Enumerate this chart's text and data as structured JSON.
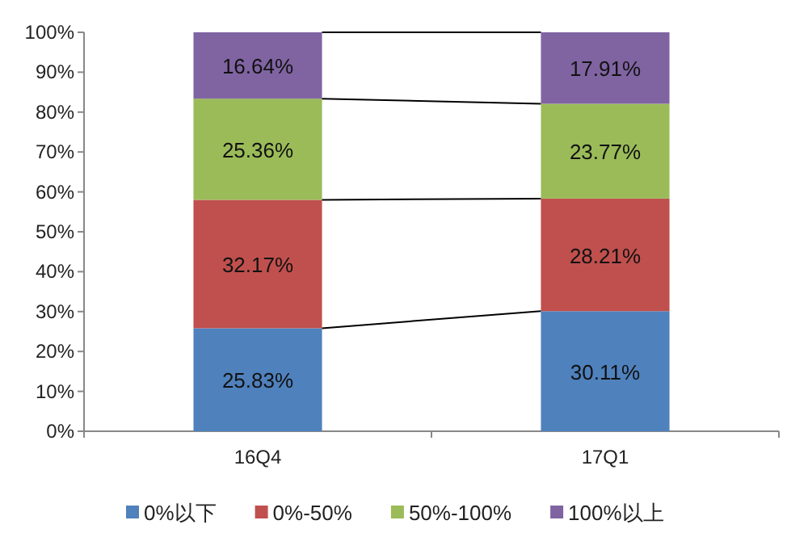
{
  "chart_data": {
    "type": "bar",
    "stacked": true,
    "categories": [
      "16Q4",
      "17Q1"
    ],
    "series": [
      {
        "name": "0%以下",
        "color": "#4f81bd",
        "values": [
          25.83,
          30.11
        ],
        "value_labels": [
          "25.83%",
          "30.11%"
        ]
      },
      {
        "name": "0%-50%",
        "color": "#c0504d",
        "values": [
          32.17,
          28.21
        ],
        "value_labels": [
          "32.17%",
          "28.21%"
        ]
      },
      {
        "name": "50%-100%",
        "color": "#9bbb59",
        "values": [
          25.36,
          23.77
        ],
        "value_labels": [
          "25.36%",
          "23.77%"
        ]
      },
      {
        "name": "100%以上",
        "color": "#8064a2",
        "values": [
          16.64,
          17.91
        ],
        "value_labels": [
          "16.64%",
          "17.91%"
        ]
      }
    ],
    "ylim": [
      0,
      100
    ],
    "yticks": [
      {
        "value": 0,
        "label": "0%"
      },
      {
        "value": 10,
        "label": "10%"
      },
      {
        "value": 20,
        "label": "20%"
      },
      {
        "value": 30,
        "label": "30%"
      },
      {
        "value": 40,
        "label": "40%"
      },
      {
        "value": 50,
        "label": "50%"
      },
      {
        "value": 60,
        "label": "60%"
      },
      {
        "value": 70,
        "label": "70%"
      },
      {
        "value": 80,
        "label": "80%"
      },
      {
        "value": 90,
        "label": "90%"
      },
      {
        "value": 100,
        "label": "100%"
      }
    ],
    "legend": "bottom",
    "grid": false
  }
}
